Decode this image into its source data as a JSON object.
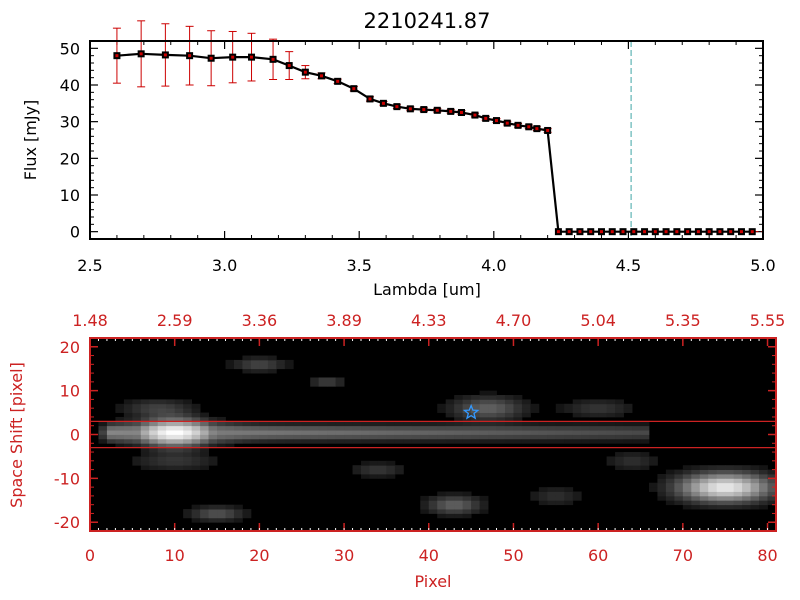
{
  "chart_data": [
    {
      "type": "line",
      "title": "2210241.87",
      "xlabel": "Lambda [um]",
      "ylabel": "Flux [mJy]",
      "xlim": [
        2.5,
        5.0
      ],
      "ylim": [
        -2,
        52
      ],
      "x_ticks": [
        "2.5",
        "3.0",
        "3.5",
        "4.0",
        "4.5",
        "5.0"
      ],
      "y_ticks": [
        "0",
        "10",
        "20",
        "30",
        "40",
        "50"
      ],
      "marker_color": "#cc0000",
      "line_color": "#000000",
      "errorbar_color": "#cc0000",
      "vline_color": "#3fa6a6",
      "vline_x": 4.51,
      "series": [
        {
          "x": [
            2.6,
            2.69,
            2.78,
            2.87,
            2.95,
            3.03,
            3.1,
            3.18,
            3.24,
            3.3,
            3.36,
            3.42,
            3.48,
            3.54,
            3.59,
            3.64,
            3.69,
            3.74,
            3.79,
            3.84,
            3.88,
            3.93,
            3.97,
            4.01,
            4.05,
            4.09,
            4.13,
            4.16,
            4.2,
            4.24,
            4.28,
            4.32,
            4.36,
            4.4,
            4.44,
            4.48,
            4.52,
            4.56,
            4.6,
            4.64,
            4.68,
            4.72,
            4.76,
            4.8,
            4.84,
            4.88,
            4.92,
            4.96
          ],
          "y": [
            48.0,
            48.5,
            48.2,
            48.0,
            47.3,
            47.6,
            47.6,
            47.0,
            45.3,
            43.5,
            42.5,
            41.0,
            39.0,
            36.2,
            35.0,
            34.1,
            33.5,
            33.3,
            33.1,
            32.8,
            32.5,
            31.8,
            30.9,
            30.3,
            29.6,
            29.0,
            28.6,
            28.1,
            27.6,
            0,
            0,
            0,
            0,
            0,
            0,
            0,
            0,
            0,
            0,
            0,
            0,
            0,
            0,
            0,
            0,
            0,
            0,
            0
          ],
          "yerr": [
            7.5,
            9.0,
            8.5,
            8.0,
            7.5,
            7.0,
            6.5,
            5.5,
            3.8,
            1.8,
            0.8,
            0.6,
            0.6,
            0.6,
            0.5,
            0.5,
            0.5,
            0.5,
            0.5,
            0.5,
            0.5,
            0.5,
            0.5,
            0.5,
            0.5,
            0.5,
            0.5,
            0.5,
            0.5,
            0,
            0,
            0,
            0,
            0,
            0,
            0,
            0,
            0,
            0,
            0,
            0,
            0,
            0,
            0,
            0,
            0,
            0,
            0
          ]
        }
      ],
      "zero_line_color": "#cc0000"
    },
    {
      "type": "heatmap",
      "xlabel": "Pixel",
      "ylabel": "Space Shift [pixel]",
      "xlim": [
        0,
        81
      ],
      "ylim": [
        -22,
        22
      ],
      "x_ticks": [
        "0",
        "10",
        "20",
        "30",
        "40",
        "50",
        "60",
        "70",
        "80"
      ],
      "y_ticks": [
        "-20",
        "-10",
        "0",
        "10",
        "20"
      ],
      "top_axis_ticks": [
        "1.48",
        "2.59",
        "3.36",
        "3.89",
        "4.33",
        "4.70",
        "5.04",
        "5.35",
        "5.55"
      ],
      "axis_color": "#cc2222",
      "background": "#000000",
      "aperture_lines_y": [
        3,
        -3
      ],
      "star_marker": {
        "x": 45,
        "y": 5,
        "color": "#3399ff"
      },
      "components": [
        {
          "kind": "trace",
          "x_start": 2,
          "x_end": 66,
          "y": 0.5,
          "peak_x": 10,
          "peak_intensity": 1.0,
          "tail_intensity": 0.45,
          "halfwidth": 1.6
        },
        {
          "kind": "blob",
          "x": 75,
          "y": -12,
          "sx": 5,
          "sy": 3,
          "intensity": 0.9
        },
        {
          "kind": "blob",
          "x": 47,
          "y": 6,
          "sx": 4,
          "sy": 2.5,
          "intensity": 0.3
        },
        {
          "kind": "blob",
          "x": 43,
          "y": -16,
          "sx": 3,
          "sy": 2,
          "intensity": 0.3
        },
        {
          "kind": "blob",
          "x": 15,
          "y": -18,
          "sx": 3,
          "sy": 1.5,
          "intensity": 0.25
        },
        {
          "kind": "blob",
          "x": 20,
          "y": 16,
          "sx": 3,
          "sy": 1.5,
          "intensity": 0.2
        },
        {
          "kind": "blob",
          "x": 28,
          "y": 12,
          "sx": 2,
          "sy": 1.2,
          "intensity": 0.18
        },
        {
          "kind": "blob",
          "x": 34,
          "y": -8,
          "sx": 3,
          "sy": 1.5,
          "intensity": 0.15
        },
        {
          "kind": "blob",
          "x": 60,
          "y": 6,
          "sx": 4,
          "sy": 2,
          "intensity": 0.14
        },
        {
          "kind": "blob",
          "x": 8,
          "y": 6,
          "sx": 4,
          "sy": 2,
          "intensity": 0.18
        },
        {
          "kind": "blob",
          "x": 55,
          "y": -14,
          "sx": 3,
          "sy": 2,
          "intensity": 0.12
        },
        {
          "kind": "blob",
          "x": 10,
          "y": -6,
          "sx": 5,
          "sy": 2,
          "intensity": 0.14
        },
        {
          "kind": "blob",
          "x": 64,
          "y": -6,
          "sx": 3,
          "sy": 2,
          "intensity": 0.12
        }
      ]
    }
  ]
}
